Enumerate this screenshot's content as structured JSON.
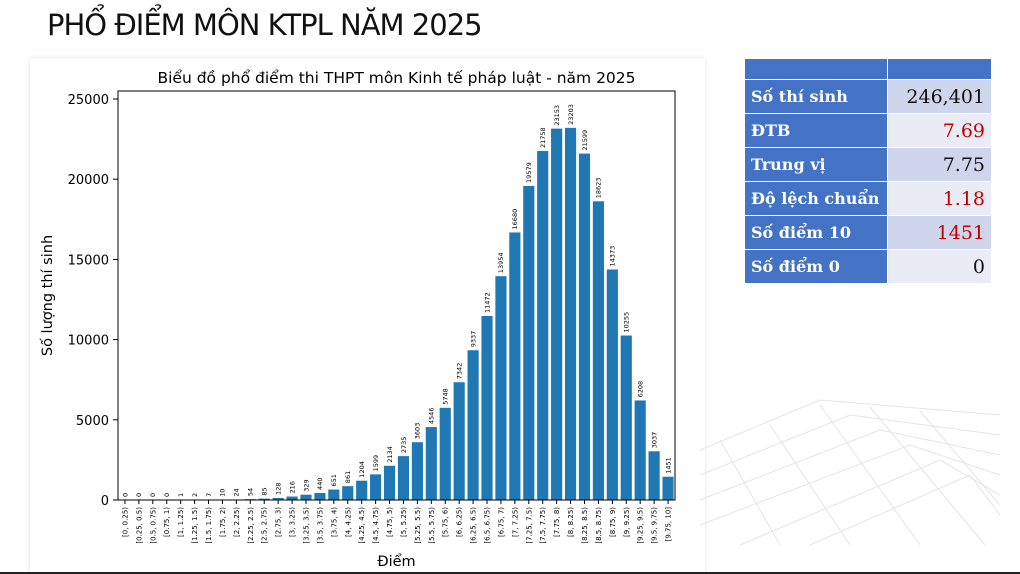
{
  "slide_title": "PHỔ ĐIỂM MÔN KTPL NĂM 2025",
  "stats": [
    {
      "label": "Số thí sinh",
      "value": "246,401",
      "color": "#111111"
    },
    {
      "label": "ĐTB",
      "value": "7.69",
      "color": "#c00000"
    },
    {
      "label": "Trung vị",
      "value": "7.75",
      "color": "#111111"
    },
    {
      "label": "Độ lệch chuẩn",
      "value": "1.18",
      "color": "#c00000"
    },
    {
      "label": "Số điểm 10",
      "value": "1451",
      "color": "#c00000"
    },
    {
      "label": "Số điểm 0",
      "value": "0",
      "color": "#111111"
    }
  ],
  "chart_data": {
    "type": "bar",
    "title": "Biểu đồ phổ điểm thi THPT môn Kinh tế pháp luật - năm 2025",
    "xlabel": "Điểm",
    "ylabel": "Số lượng thí sinh",
    "ylim": [
      0,
      25500
    ],
    "yticks": [
      0,
      5000,
      10000,
      15000,
      20000,
      25000
    ],
    "bar_color": "#1f77b4",
    "categories": [
      "[0, 0.25)",
      "[0.25, 0.5)",
      "[0.5, 0.75)",
      "[0.75, 1)",
      "[1, 1.25)",
      "[1.25, 1.5)",
      "[1.5, 1.75)",
      "[1.75, 2)",
      "[2, 2.25)",
      "[2.25, 2.5)",
      "[2.5, 2.75)",
      "[2.75, 3)",
      "[3, 3.25)",
      "[3.25, 3.5)",
      "[3.5, 3.75)",
      "[3.75, 4)",
      "[4, 4.25)",
      "[4.25, 4.5)",
      "[4.5, 4.75)",
      "[4.75, 5)",
      "[5, 5.25)",
      "[5.25, 5.5)",
      "[5.5, 5.75)",
      "[5.75, 6)",
      "[6, 6.25)",
      "[6.25, 6.5)",
      "[6.5, 6.75)",
      "[6.75, 7)",
      "[7, 7.25)",
      "[7.25, 7.5)",
      "[7.5, 7.75)",
      "[7.75, 8)",
      "[8, 8.25)",
      "[8.25, 8.5)",
      "[8.5, 8.75)",
      "[8.75, 9)",
      "[9, 9.25)",
      "[9.25, 9.5)",
      "[9.5, 9.75)",
      "[9.75, 10]"
    ],
    "values": [
      0,
      0,
      0,
      0,
      1,
      2,
      7,
      10,
      24,
      54,
      85,
      128,
      216,
      329,
      440,
      651,
      861,
      1204,
      1599,
      2134,
      2735,
      3603,
      4546,
      5748,
      7342,
      9337,
      11472,
      13954,
      16680,
      19579,
      21758,
      23153,
      23203,
      21599,
      18623,
      14373,
      10255,
      6208,
      3037,
      1451
    ]
  }
}
